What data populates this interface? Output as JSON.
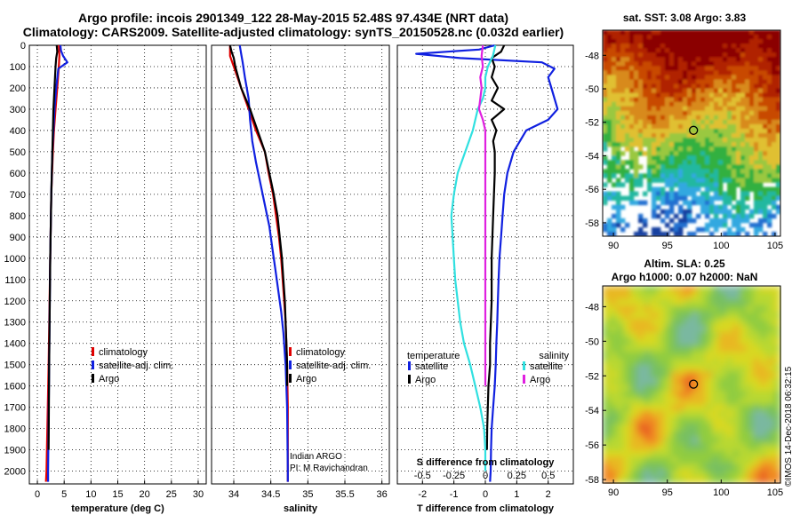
{
  "header": {
    "title_line1": "Argo profile: incois 2901349_122 28-May-2015 52.48S 97.434E (NRT data)",
    "title_line2": "Climatology: CARS2009. Satellite-adjusted climatology: synTS_20150528.nc (0.032d earlier)"
  },
  "colors": {
    "climatology": "#e00000",
    "satellite": "#1020e0",
    "argo": "#000000",
    "sat_salinity": "#30e0e0",
    "argo_salinity": "#e020e0"
  },
  "chart_data": [
    {
      "type": "line",
      "name": "temperature-profile",
      "xlabel": "temperature (deg C)",
      "ylabel": "depth",
      "xlim": [
        -1.5,
        31.5
      ],
      "ylim": [
        2060,
        0
      ],
      "xticks": [
        0,
        5,
        10,
        15,
        20,
        25,
        30
      ],
      "yticks": [
        0,
        100,
        200,
        300,
        400,
        500,
        600,
        700,
        800,
        900,
        1000,
        1100,
        1200,
        1300,
        1400,
        1500,
        1600,
        1700,
        1800,
        1900,
        2000
      ],
      "legend": [
        "climatology",
        "satellite-adj. clim.",
        "Argo"
      ],
      "legend_position": "lower-right",
      "series": [
        {
          "name": "climatology",
          "color_key": "climatology",
          "depth": [
            0,
            50,
            100,
            200,
            300,
            400,
            500,
            700,
            1000,
            1500,
            2000,
            2050
          ],
          "values": [
            4.0,
            4.1,
            4.0,
            3.7,
            3.4,
            3.1,
            2.9,
            2.6,
            2.4,
            2.1,
            1.7,
            1.6
          ]
        },
        {
          "name": "satellite-adj. clim.",
          "color_key": "satellite",
          "depth": [
            0,
            25,
            50,
            80,
            110,
            200,
            300,
            400,
            500,
            700,
            1000,
            1500,
            2000,
            2050
          ],
          "values": [
            4.3,
            4.4,
            4.8,
            5.6,
            3.9,
            3.5,
            3.2,
            3.0,
            2.8,
            2.6,
            2.4,
            2.2,
            2.0,
            2.0
          ]
        },
        {
          "name": "Argo",
          "color_key": "argo",
          "depth": [
            0,
            30,
            60,
            100,
            200,
            300,
            400,
            500,
            700,
            1000,
            1500,
            1900
          ],
          "values": [
            3.6,
            3.7,
            3.5,
            3.4,
            3.2,
            3.0,
            2.9,
            2.8,
            2.6,
            2.4,
            2.2,
            2.1
          ]
        }
      ]
    },
    {
      "type": "line",
      "name": "salinity-profile",
      "xlabel": "salinity",
      "ylabel": "depth",
      "xlim": [
        33.7,
        36.1
      ],
      "ylim": [
        2060,
        0
      ],
      "xticks": [
        34,
        34.5,
        35,
        35.5,
        36
      ],
      "legend": [
        "climatology",
        "satellite-adj. clim.",
        "Argo"
      ],
      "legend_position": "lower-right",
      "annotation": [
        "Indian ARGO",
        "PI: M Ravichandran"
      ],
      "series": [
        {
          "name": "climatology",
          "color_key": "climatology",
          "depth": [
            0,
            50,
            100,
            200,
            300,
            400,
            500,
            600,
            700,
            800,
            900,
            1000,
            1100,
            1200,
            1300,
            1500,
            1700,
            2000,
            2050
          ],
          "values": [
            33.95,
            33.95,
            34.0,
            34.1,
            34.2,
            34.3,
            34.42,
            34.47,
            34.53,
            34.57,
            34.61,
            34.64,
            34.66,
            34.68,
            34.7,
            34.72,
            34.73,
            34.73,
            34.73
          ]
        },
        {
          "name": "satellite-adj. clim.",
          "color_key": "satellite",
          "depth": [
            0,
            40,
            80,
            150,
            250,
            350,
            450,
            550,
            650,
            750,
            850,
            950,
            1050,
            1150,
            1250,
            1350,
            1500,
            1700,
            2000,
            2050
          ],
          "values": [
            34.08,
            34.1,
            34.12,
            34.15,
            34.2,
            34.22,
            34.25,
            34.3,
            34.36,
            34.42,
            34.48,
            34.52,
            34.56,
            34.6,
            34.64,
            34.67,
            34.7,
            34.72,
            34.73,
            34.73
          ]
        },
        {
          "name": "Argo",
          "color_key": "argo",
          "depth": [
            0,
            30,
            60,
            100,
            200,
            300,
            400,
            500,
            600,
            700,
            800,
            900,
            1000,
            1100,
            1200,
            1300,
            1400,
            1500,
            1600
          ],
          "values": [
            33.95,
            33.97,
            34.0,
            34.02,
            34.1,
            34.22,
            34.32,
            34.42,
            34.48,
            34.54,
            34.59,
            34.62,
            34.65,
            34.67,
            34.69,
            34.7,
            34.71,
            34.72,
            34.72
          ]
        }
      ]
    },
    {
      "type": "line",
      "name": "difference-profile",
      "xlabel": "T difference from climatology",
      "xlabel2": "S difference from climatology",
      "xlim": [
        -2.8,
        2.8
      ],
      "x2lim": [
        -0.7,
        0.7
      ],
      "xticks": [
        -2,
        -1,
        0,
        1,
        2
      ],
      "x2ticks": [
        -0.5,
        -0.25,
        0,
        0.25,
        0.5
      ],
      "x2ticklabels": [
        "-0.5",
        "-0.25",
        "0",
        "0.25",
        "0.5"
      ],
      "ylim": [
        2060,
        0
      ],
      "legend_temperature_title": "temperature",
      "legend_salinity_title": "salinity",
      "legend_temperature": [
        "satellite",
        "Argo"
      ],
      "legend_salinity": [
        "satellite",
        "Argo"
      ],
      "series": [
        {
          "name": "T satellite",
          "color_key": "satellite",
          "depth": [
            0,
            20,
            40,
            60,
            80,
            110,
            150,
            200,
            300,
            350,
            400,
            500,
            600,
            700,
            800,
            900,
            1000,
            1100,
            1200,
            1300,
            1400,
            1500,
            1600,
            1700,
            1800,
            1900,
            2000,
            2050
          ],
          "values": [
            0.3,
            -0.2,
            -2.2,
            -0.8,
            1.8,
            2.2,
            2.0,
            2.1,
            2.3,
            2.0,
            1.3,
            0.9,
            0.7,
            0.6,
            0.55,
            0.5,
            0.45,
            0.42,
            0.4,
            0.38,
            0.35,
            0.33,
            0.3,
            0.25,
            0.2,
            0.18,
            0.17,
            0.15
          ]
        },
        {
          "name": "T Argo",
          "color_key": "argo",
          "depth": [
            0,
            30,
            60,
            100,
            150,
            200,
            260,
            300,
            350,
            400,
            450,
            500,
            600,
            800,
            1000,
            1200,
            1400,
            1500,
            1600,
            1700,
            1800,
            1900
          ],
          "values": [
            0.6,
            0.5,
            0.2,
            0.3,
            0.2,
            0.4,
            0.2,
            0.6,
            0.2,
            0.35,
            0.25,
            0.3,
            0.3,
            0.25,
            0.2,
            0.2,
            0.15,
            0.15,
            0.1,
            0.08,
            0.06,
            0.05
          ]
        },
        {
          "name": "S satellite",
          "color_key": "sat_salinity",
          "depth": [
            0,
            50,
            100,
            150,
            200,
            250,
            300,
            400,
            500,
            600,
            700,
            800,
            900,
            1000,
            1100,
            1200,
            1300,
            1400,
            1500,
            1600,
            1700,
            1800,
            1900,
            2000
          ],
          "values": [
            0.08,
            0.06,
            0.02,
            0.0,
            0.0,
            -0.02,
            -0.06,
            -0.1,
            -0.16,
            -0.22,
            -0.25,
            -0.27,
            -0.26,
            -0.25,
            -0.24,
            -0.22,
            -0.2,
            -0.17,
            -0.12,
            -0.08,
            -0.04,
            -0.01,
            0.0,
            0.0
          ]
        },
        {
          "name": "S Argo",
          "color_key": "argo_salinity",
          "depth": [
            0,
            50,
            100,
            150,
            200,
            300,
            350,
            400,
            500,
            700,
            1000,
            1300,
            1500,
            1600
          ],
          "values": [
            -0.02,
            -0.03,
            -0.02,
            -0.04,
            -0.03,
            -0.05,
            -0.02,
            0.0,
            0.0,
            0.0,
            0.0,
            0.0,
            0.0,
            0.0
          ]
        }
      ]
    },
    {
      "type": "heatmap",
      "name": "sst-map",
      "title": "sat. SST: 3.08 Argo: 3.83",
      "xlim": [
        89,
        105.5
      ],
      "ylim": [
        -58.8,
        -46.5
      ],
      "xticks": [
        90,
        95,
        100,
        105
      ],
      "yticks": [
        -48,
        -50,
        -52,
        -54,
        -56,
        -58
      ],
      "marker": {
        "lon": 97.43,
        "lat": -52.48
      }
    },
    {
      "type": "heatmap",
      "name": "sla-map",
      "title_line1": "Altim. SLA: 0.25",
      "title_line2": "Argo h1000: 0.07 h2000: NaN",
      "xlim": [
        89,
        105.5
      ],
      "ylim": [
        -58.2,
        -46.8
      ],
      "xticks": [
        90,
        95,
        100,
        105
      ],
      "yticks": [
        -48,
        -50,
        -52,
        -54,
        -56,
        -58
      ],
      "marker": {
        "lon": 97.43,
        "lat": -52.48
      }
    }
  ],
  "footer": {
    "credit": "©IMOS 14-Dec-2018 06:32:15"
  }
}
